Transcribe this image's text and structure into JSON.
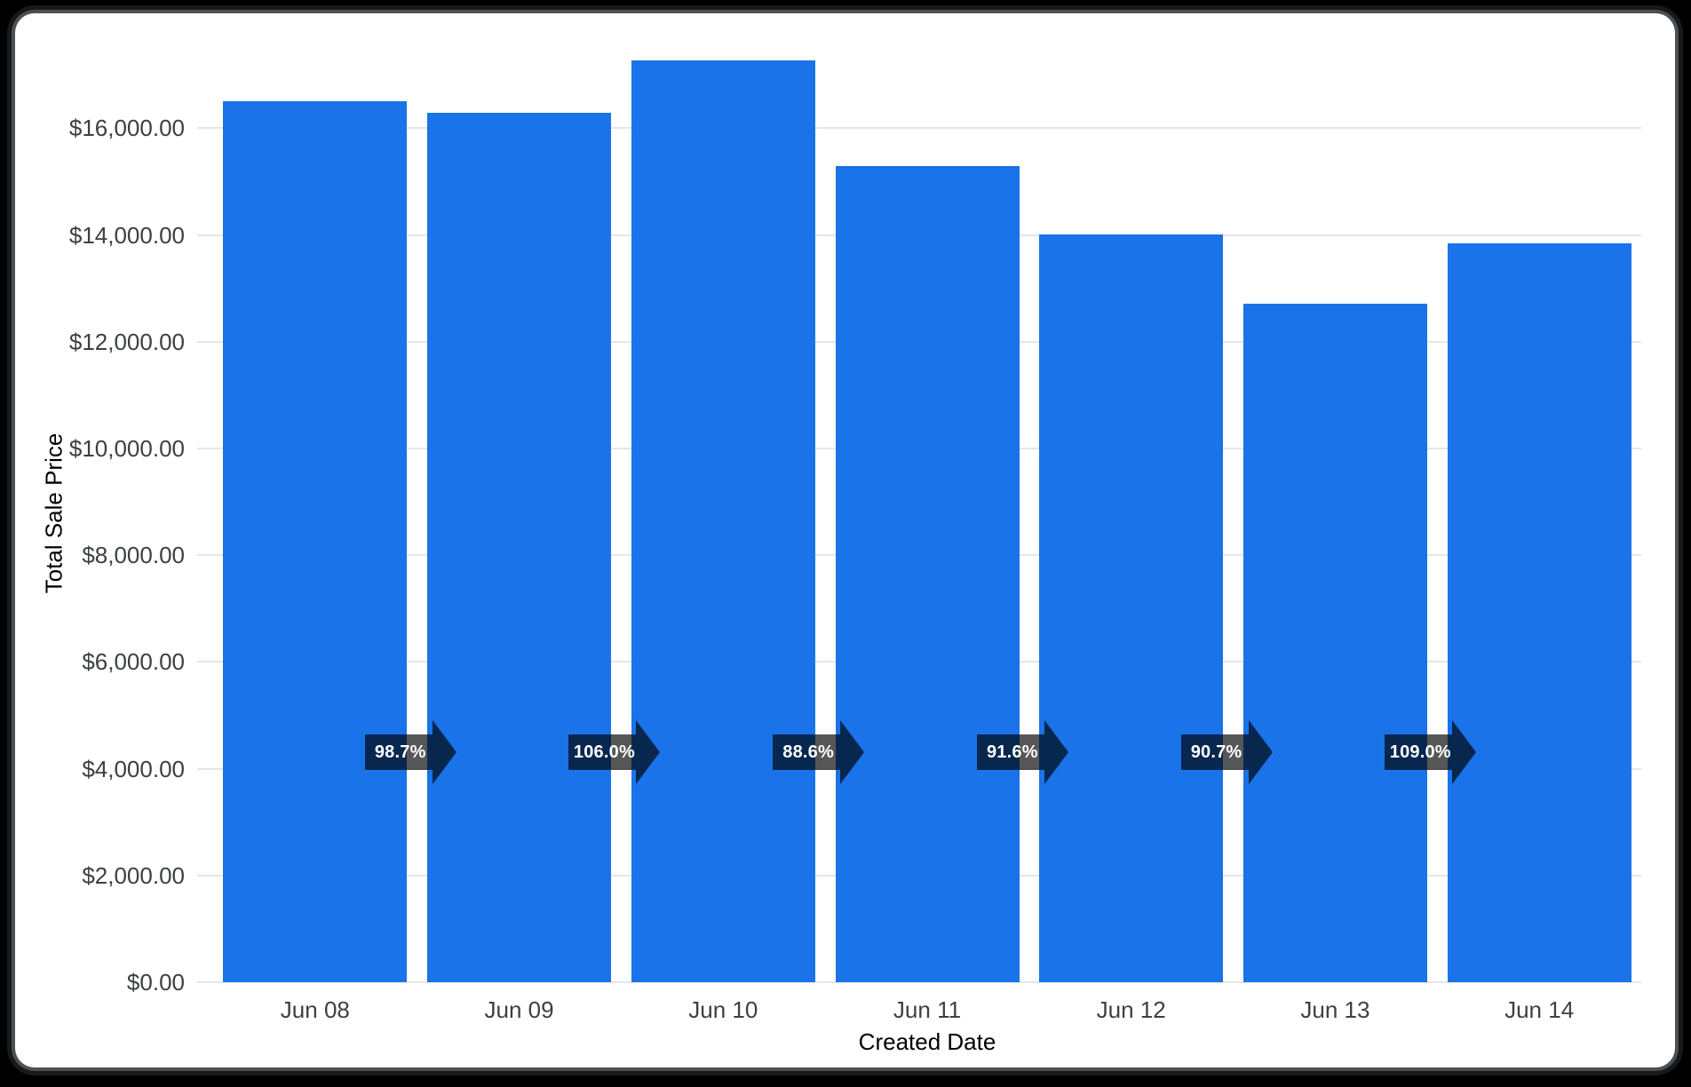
{
  "chart_data": {
    "type": "bar",
    "title": "",
    "xlabel": "Created Date",
    "ylabel": "Total Sale Price",
    "categories": [
      "Jun 08",
      "Jun 09",
      "Jun 10",
      "Jun 11",
      "Jun 12",
      "Jun 13",
      "Jun 14"
    ],
    "series": [
      {
        "name": "Total Sale Price",
        "values": [
          16500,
          16286,
          17263,
          15295,
          14010,
          12707,
          13851
        ]
      }
    ],
    "period_over_period_labels": [
      "98.7%",
      "106.0%",
      "88.6%",
      "91.6%",
      "90.7%",
      "109.0%"
    ],
    "y_ticks": [
      {
        "value": 0,
        "label": "$0.00"
      },
      {
        "value": 2000,
        "label": "$2,000.00"
      },
      {
        "value": 4000,
        "label": "$4,000.00"
      },
      {
        "value": 6000,
        "label": "$6,000.00"
      },
      {
        "value": 8000,
        "label": "$8,000.00"
      },
      {
        "value": 10000,
        "label": "$10,000.00"
      },
      {
        "value": 12000,
        "label": "$12,000.00"
      },
      {
        "value": 14000,
        "label": "$14,000.00"
      },
      {
        "value": 16000,
        "label": "$16,000.00"
      }
    ],
    "ylim": [
      0,
      17600
    ],
    "grid": true,
    "legend": "none"
  },
  "colors": {
    "bar": "#1a73e8",
    "gridline": "#e6e6e6",
    "axis_text": "#3c4043",
    "annotation_bg": "rgba(0,0,0,0.66)",
    "annotation_text": "#ffffff",
    "card_bg": "#ffffff",
    "frame_bg": "#000000"
  }
}
